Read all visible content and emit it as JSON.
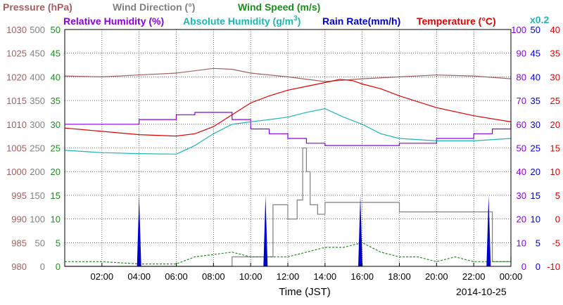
{
  "legend": {
    "pressure": "Pressure (hPa)",
    "wind_direction": "Wind Direction (°)",
    "wind_speed": "Wind Speed (m/s)",
    "relative_humidity": "Relative Humidity (%)",
    "absolute_humidity": "Absolute Humidity (g/m",
    "absolute_humidity_sup": "3",
    "absolute_humidity_close": ")",
    "rain_rate": "Rain Rate(mm/h)",
    "temperature": "Temperature (°C)",
    "rain_scale": "x0.2"
  },
  "colors": {
    "pressure": "#a0605f",
    "wind_direction": "#808080",
    "wind_speed": "#1f8c1f",
    "relative_humidity": "#8a00e0",
    "absolute_humidity": "#1fb5b5",
    "rain_rate": "#0000cc",
    "temperature": "#e00000"
  },
  "chart_data": {
    "type": "line",
    "xlabel": "Time (JST)",
    "date_label": "2014-10-25",
    "x_ticks": [
      "02:00",
      "04:00",
      "06:00",
      "08:00",
      "10:00",
      "12:00",
      "14:00",
      "16:00",
      "18:00",
      "20:00",
      "22:00",
      "00:00"
    ],
    "x_range_hours": [
      0,
      24
    ],
    "grid": true,
    "axes": {
      "pressure": {
        "range": [
          980,
          1030
        ],
        "ticks": [
          "1030",
          "1025",
          "1020",
          "1015",
          "1010",
          "1005",
          "1000",
          "995",
          "990",
          "985",
          "980"
        ]
      },
      "wind_direction": {
        "range": [
          0,
          500
        ],
        "ticks": [
          "500",
          "450",
          "400",
          "350",
          "300",
          "250",
          "200",
          "150",
          "100",
          "50",
          "0"
        ]
      },
      "wind_speed": {
        "range": [
          0,
          50
        ],
        "ticks": [
          "50",
          "45",
          "40",
          "35",
          "30",
          "25",
          "20",
          "15",
          "10",
          "5",
          "0"
        ]
      },
      "relative_humidity": {
        "range": [
          0,
          100
        ],
        "ticks": [
          "100",
          "90",
          "80",
          "70",
          "60",
          "50",
          "40",
          "30",
          "20",
          "10",
          "0"
        ]
      },
      "rain_rate": {
        "range": [
          0,
          50
        ],
        "ticks": [
          "50",
          "45",
          "40",
          "35",
          "30",
          "25",
          "20",
          "15",
          "10",
          "5",
          "0"
        ]
      },
      "temperature": {
        "range": [
          -10,
          40
        ],
        "ticks": [
          "40",
          "35",
          "30",
          "25",
          "20",
          "15",
          "10",
          "5",
          "0",
          "-5",
          "-10"
        ]
      }
    },
    "series": [
      {
        "name": "Pressure (hPa)",
        "axis": "pressure",
        "x": [
          0,
          2,
          4,
          6,
          8,
          9,
          10,
          12,
          14,
          16,
          18,
          20,
          22,
          24
        ],
        "y": [
          1020.2,
          1020.0,
          1020.4,
          1020.8,
          1021.8,
          1021.6,
          1020.8,
          1020.0,
          1019.0,
          1019.6,
          1020.0,
          1020.4,
          1020.2,
          1019.6
        ]
      },
      {
        "name": "Wind Direction (°)",
        "axis": "wind_direction",
        "x": [
          0,
          7,
          9,
          10.8,
          11.2,
          12,
          12.5,
          12.8,
          13,
          13.2,
          13.6,
          14,
          15,
          16,
          17,
          18,
          20,
          22,
          22.8,
          23,
          24
        ],
        "y": [
          0,
          0,
          20,
          20,
          130,
          100,
          140,
          250,
          200,
          130,
          110,
          135,
          135,
          135,
          135,
          115,
          115,
          115,
          115,
          10,
          20
        ]
      },
      {
        "name": "Wind Speed (m/s)",
        "axis": "wind_speed",
        "x": [
          0,
          2,
          4,
          6,
          7,
          9,
          10,
          11,
          12,
          13,
          14,
          15,
          16,
          17,
          18,
          19,
          20,
          21,
          22,
          23,
          24
        ],
        "y": [
          1,
          1,
          0.5,
          0.5,
          2,
          3,
          2,
          2,
          2,
          3,
          4,
          4,
          5,
          3,
          2,
          2,
          1,
          2,
          1,
          1,
          1
        ]
      },
      {
        "name": "Relative Humidity (%)",
        "axis": "relative_humidity",
        "x": [
          0,
          2,
          4,
          6,
          7,
          8,
          9,
          10,
          11,
          12,
          13,
          14,
          16,
          18,
          20,
          22,
          23,
          24
        ],
        "y": [
          60,
          60,
          62,
          64,
          65,
          65,
          62,
          58,
          56,
          54,
          52,
          51,
          51,
          52,
          54,
          56,
          58,
          60
        ]
      },
      {
        "name": "Absolute Humidity (g/m³)",
        "axis": "absolute_humidity",
        "x": [
          0,
          2,
          4,
          6,
          7,
          8,
          9,
          10,
          11,
          12,
          13,
          14,
          15,
          16,
          17,
          18,
          20,
          22,
          24
        ],
        "y": [
          24.5,
          24.0,
          23.8,
          23.7,
          25.5,
          28.0,
          30.0,
          30.5,
          31.0,
          31.5,
          32.5,
          33.3,
          31.5,
          30.0,
          28.0,
          27.0,
          26.5,
          26.5,
          27.0
        ]
      },
      {
        "name": "Rain Rate(mm/h)",
        "axis": "rain_rate",
        "scale": "x0.2",
        "x": [
          4.0,
          10.8,
          15.9,
          22.8
        ],
        "y": [
          3,
          3,
          3,
          3
        ]
      },
      {
        "name": "Temperature (°C)",
        "axis": "temperature",
        "x": [
          0,
          2,
          4,
          6,
          7,
          8,
          9,
          10,
          11,
          12,
          13,
          14,
          14.8,
          15.5,
          16,
          17,
          18,
          20,
          22,
          24
        ],
        "y": [
          19.2,
          18.5,
          17.8,
          17.5,
          18.0,
          19.5,
          22,
          24.5,
          26.0,
          27.2,
          28.0,
          28.8,
          29.5,
          29.2,
          28.5,
          27.5,
          26.0,
          23.5,
          21.8,
          20.5
        ]
      }
    ]
  }
}
